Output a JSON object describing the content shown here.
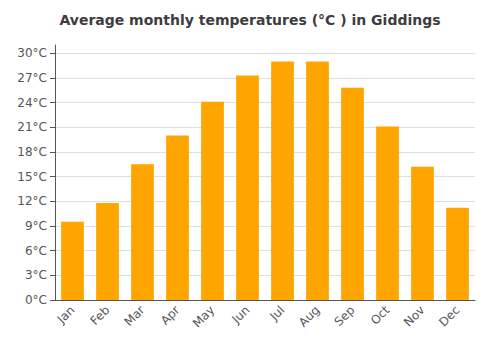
{
  "chart_data": {
    "type": "bar",
    "title": "Average monthly temperatures (°C ) in Giddings",
    "categories": [
      "Jan",
      "Feb",
      "Mar",
      "Apr",
      "May",
      "Jun",
      "Jul",
      "Aug",
      "Sep",
      "Oct",
      "Nov",
      "Dec"
    ],
    "values": [
      9.5,
      11.8,
      16.5,
      20.0,
      24.1,
      27.3,
      29.0,
      29.0,
      25.8,
      21.1,
      16.2,
      11.2
    ],
    "color": "#FFA500",
    "ylim": [
      0,
      31
    ],
    "yticks": [
      {
        "value": 0,
        "label": "0°C"
      },
      {
        "value": 3,
        "label": "3°C"
      },
      {
        "value": 6,
        "label": "6°C"
      },
      {
        "value": 9,
        "label": "9°C"
      },
      {
        "value": 12,
        "label": "12°C"
      },
      {
        "value": 15,
        "label": "15°C"
      },
      {
        "value": 18,
        "label": "18°C"
      },
      {
        "value": 21,
        "label": "21°C"
      },
      {
        "value": 24,
        "label": "24°C"
      },
      {
        "value": 27,
        "label": "27°C"
      },
      {
        "value": 30,
        "label": "30°C"
      }
    ],
    "grid": true
  }
}
